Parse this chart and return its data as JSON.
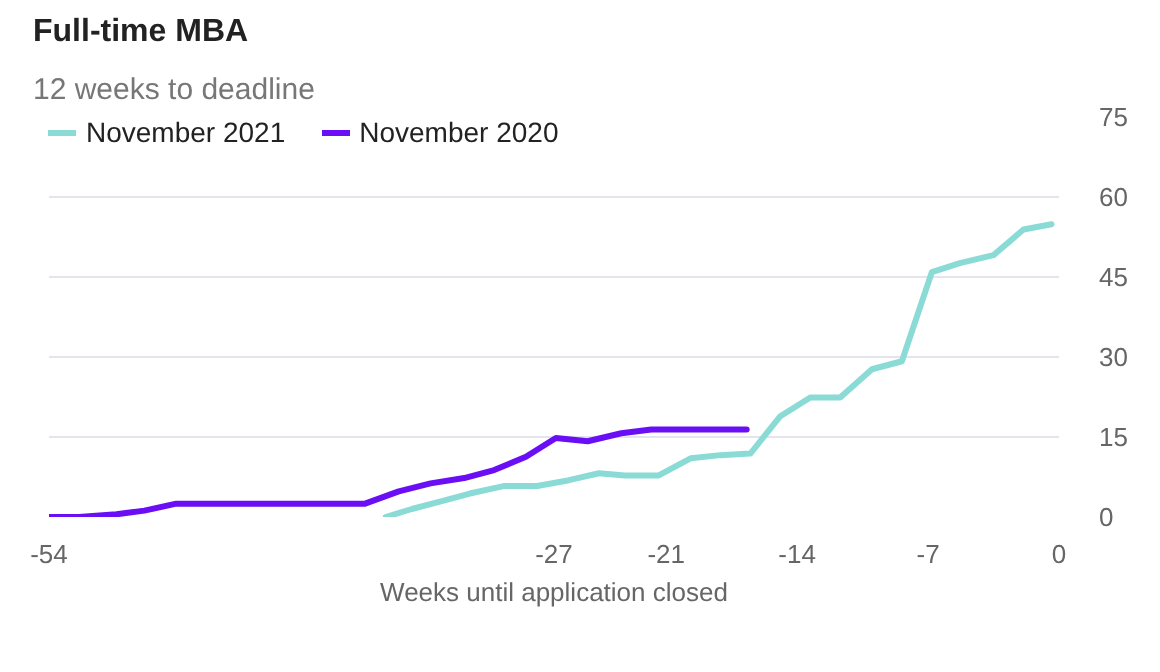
{
  "chart_data": {
    "type": "line",
    "title": "Full-time MBA",
    "subtitle": "12 weeks to deadline",
    "xlabel": "Weeks until application closed",
    "series": [
      {
        "name": "November 2021",
        "color": "#8adbd6",
        "x": [
          -36.0,
          -34.6,
          -33.2,
          -31.5,
          -29.7,
          -27.9,
          -26.2,
          -24.6,
          -23.2,
          -21.4,
          -19.7,
          -18.1,
          -16.5,
          -14.9,
          -13.3,
          -11.7,
          -10.0,
          -8.4,
          -6.8,
          -5.3,
          -3.5,
          -1.9,
          -0.4
        ],
        "values": [
          0,
          1.5,
          2.8,
          4.4,
          5.8,
          5.8,
          6.9,
          8.2,
          7.8,
          7.8,
          11.0,
          11.6,
          11.9,
          18.9,
          22.4,
          22.4,
          27.7,
          29.2,
          45.9,
          47.6,
          49.1,
          53.9,
          54.9
        ]
      },
      {
        "name": "November 2020",
        "color": "#6a0ff5",
        "x": [
          -54.0,
          -52.4,
          -50.4,
          -48.9,
          -47.2,
          -37.1,
          -35.3,
          -33.6,
          -31.8,
          -30.2,
          -28.5,
          -26.9,
          -25.2,
          -23.4,
          -21.8,
          -16.7
        ],
        "values": [
          0,
          0,
          0.5,
          1.2,
          2.5,
          2.5,
          4.8,
          6.3,
          7.3,
          8.8,
          11.3,
          14.8,
          14.2,
          15.7,
          16.4,
          16.4
        ]
      }
    ],
    "xlim": [
      -54,
      0
    ],
    "xticks": [
      -54,
      -27,
      -21,
      -14,
      -7,
      0
    ],
    "ylim": [
      0,
      75
    ],
    "yticks": [
      0,
      15,
      30,
      45,
      60,
      75
    ],
    "grid": "y",
    "legend": "top left",
    "line_style": "solid",
    "marker": "none"
  }
}
